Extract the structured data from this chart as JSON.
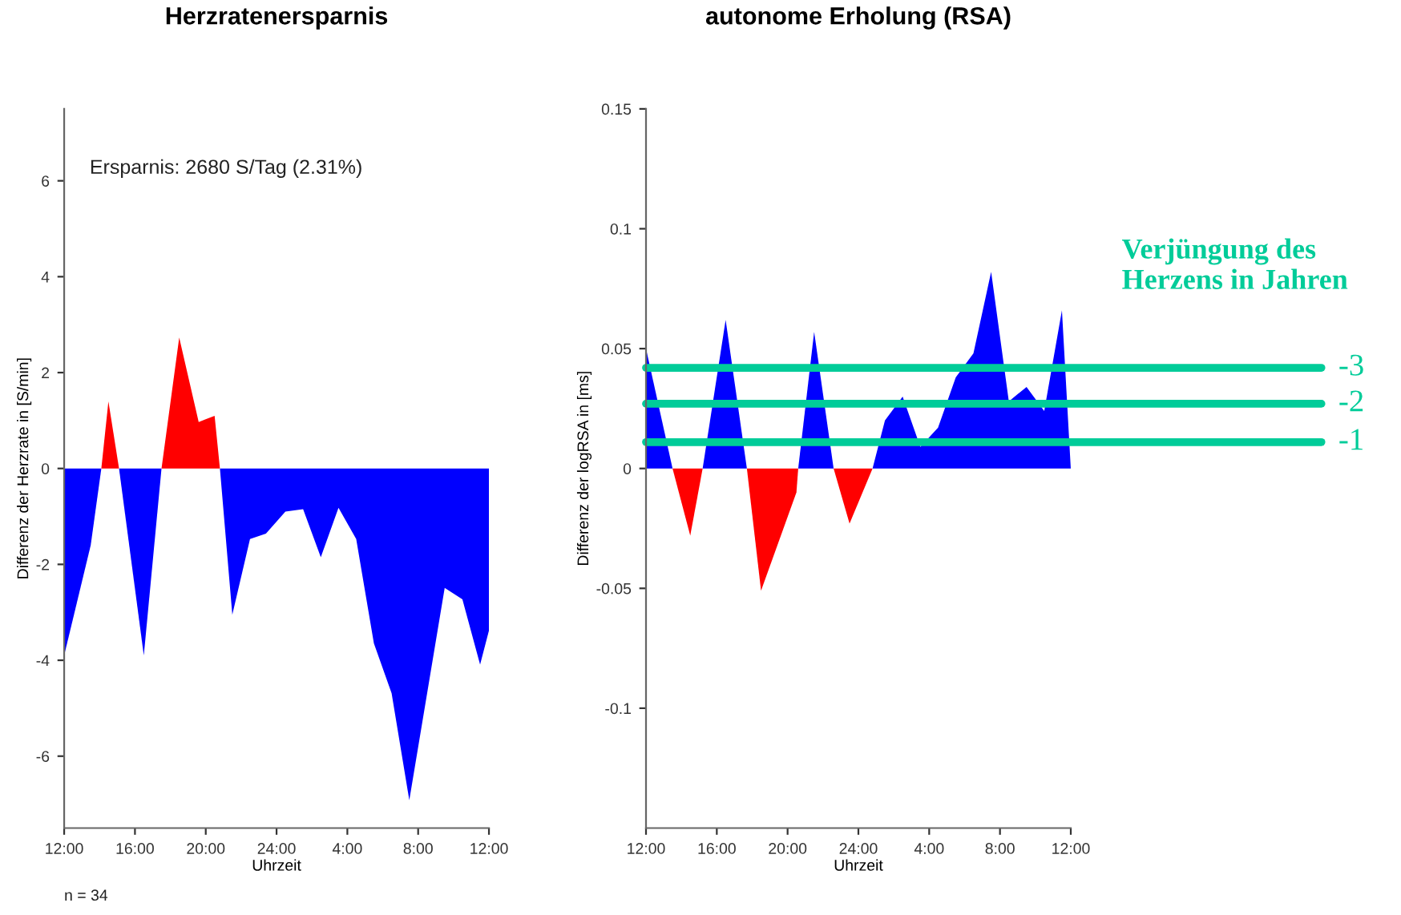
{
  "chart_data": [
    {
      "type": "area",
      "title": "Herzratenersparnis",
      "xlabel": "Uhrzeit",
      "ylabel": "Differenz der Herzrate in [S/min]",
      "xlim": [
        "2000-01-01T12:00",
        "2000-01-02T12:00"
      ],
      "xticks": [
        {
          "value": "2000-01-01T12:00",
          "label": "12:00"
        },
        {
          "value": "2000-01-01T16:00",
          "label": "16:00"
        },
        {
          "value": "2000-01-01T20:00",
          "label": "20:00"
        },
        {
          "value": "2000-01-02T00:00",
          "label": "24:00"
        },
        {
          "value": "2000-01-02T04:00",
          "label": "4:00"
        },
        {
          "value": "2000-01-02T08:00",
          "label": "8:00"
        },
        {
          "value": "2000-01-02T12:00",
          "label": "12:00"
        }
      ],
      "ylim": [
        -7.5,
        7.5
      ],
      "yticks": [
        -6,
        -4,
        -2,
        0,
        2,
        4,
        6
      ],
      "series": [
        {
          "color": "#0000ff",
          "x": [
            "2000-01-01T12:00",
            "2000-01-01T13:30",
            "2000-01-01T14:06",
            "2000-01-01T14:36",
            "2000-01-01T15:06",
            "2000-01-01T16:30",
            "2000-01-01T17:30",
            "2000-01-01T19:00",
            "2000-01-01T20:48",
            "2000-01-01T21:30",
            "2000-01-01T22:30",
            "2000-01-01T23:24",
            "2000-01-02T00:30",
            "2000-01-02T01:30",
            "2000-01-02T02:30",
            "2000-01-02T03:30",
            "2000-01-02T04:30",
            "2000-01-02T05:30",
            "2000-01-02T06:30",
            "2000-01-02T07:30",
            "2000-01-02T09:30",
            "2000-01-02T10:30",
            "2000-01-02T11:30",
            "2000-01-02T12:00"
          ],
          "values": [
            -3.9,
            -1.6,
            0,
            null,
            0,
            -3.9,
            0,
            null,
            0,
            -3.05,
            -1.47,
            -1.36,
            -0.9,
            -0.85,
            -1.85,
            -0.82,
            -1.47,
            -3.65,
            -4.69,
            -6.92,
            -2.49,
            -2.73,
            -4.09,
            -3.38
          ]
        },
        {
          "color": "#ff0000",
          "x": [
            "2000-01-01T14:06",
            "2000-01-01T14:30",
            "2000-01-01T15:06",
            "2000-01-01T16:30",
            "2000-01-01T17:30",
            "2000-01-01T18:30",
            "2000-01-01T19:36",
            "2000-01-01T20:30",
            "2000-01-01T20:48"
          ],
          "values": [
            0,
            1.4,
            0,
            null,
            0,
            2.73,
            0.97,
            1.1,
            0
          ]
        }
      ],
      "annotations": [
        "Ersparnis: 2680 S/Tag (2.31%)",
        "n = 34"
      ]
    },
    {
      "type": "area",
      "title": "autonome Erholung (RSA)",
      "xlabel": "Uhrzeit",
      "ylabel": "Differenz der logRSA in [ms]",
      "xlim": [
        "2000-01-01T12:00",
        "2000-01-02T12:00"
      ],
      "xticks": [
        {
          "value": "2000-01-01T12:00",
          "label": "12:00"
        },
        {
          "value": "2000-01-01T16:00",
          "label": "16:00"
        },
        {
          "value": "2000-01-01T20:00",
          "label": "20:00"
        },
        {
          "value": "2000-01-02T00:00",
          "label": "24:00"
        },
        {
          "value": "2000-01-02T04:00",
          "label": "4:00"
        },
        {
          "value": "2000-01-02T08:00",
          "label": "8:00"
        },
        {
          "value": "2000-01-02T12:00",
          "label": "12:00"
        }
      ],
      "ylim": [
        -0.15,
        0.15
      ],
      "yticks": [
        -0.1,
        -0.05,
        0,
        0.05,
        0.1,
        0.15
      ],
      "series": [
        {
          "color": "#0000ff",
          "x": [
            "2000-01-01T12:00",
            "2000-01-01T13:30",
            "2000-01-01T14:18",
            "2000-01-01T15:12",
            "2000-01-01T16:30",
            "2000-01-01T17:42",
            "2000-01-01T18:36",
            "2000-01-01T20:36",
            "2000-01-01T21:30",
            "2000-01-01T22:36",
            "2000-01-01T23:42",
            "2000-01-02T00:48",
            "2000-01-02T01:30",
            "2000-01-02T02:30",
            "2000-01-02T03:30",
            "2000-01-02T04:30",
            "2000-01-02T05:30",
            "2000-01-02T06:30",
            "2000-01-02T07:30",
            "2000-01-02T08:30",
            "2000-01-02T09:30",
            "2000-01-02T10:30",
            "2000-01-02T11:30",
            "2000-01-02T12:00"
          ],
          "values": [
            0.05,
            0,
            null,
            0,
            0.062,
            0,
            null,
            0,
            0.057,
            0,
            null,
            0,
            0.02,
            0.03,
            0.009,
            0.017,
            0.038,
            0.048,
            0.082,
            0.028,
            0.034,
            0.024,
            0.066,
            0
          ]
        },
        {
          "color": "#ff0000",
          "x": [
            "2000-01-01T13:30",
            "2000-01-01T14:30",
            "2000-01-01T15:12",
            "2000-01-01T16:30",
            "2000-01-01T17:42",
            "2000-01-01T18:30",
            "2000-01-01T20:30",
            "2000-01-01T20:36",
            "2000-01-01T21:30",
            "2000-01-01T22:36",
            "2000-01-01T23:30",
            "2000-01-02T00:48"
          ],
          "values": [
            0,
            -0.028,
            0,
            null,
            0,
            -0.051,
            -0.01,
            0,
            null,
            0,
            -0.023,
            0
          ]
        }
      ],
      "ref_lines": [
        {
          "axis": "y",
          "value": 0.042,
          "color": "#00cc99"
        },
        {
          "axis": "y",
          "value": 0.027,
          "color": "#00cc99"
        },
        {
          "axis": "y",
          "value": 0.011,
          "color": "#00cc99"
        }
      ],
      "annotations": [
        "Verjüngung des\nHerzens in Jahren",
        "-3",
        "-2",
        "-1"
      ]
    }
  ]
}
